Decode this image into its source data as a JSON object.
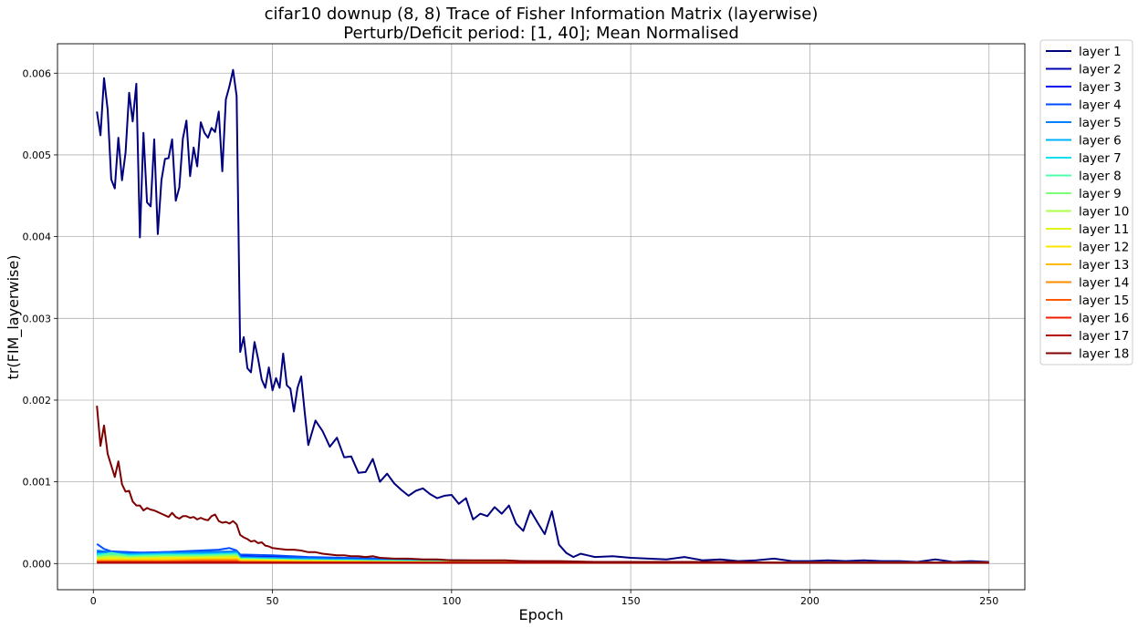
{
  "chart_data": {
    "type": "line",
    "title": [
      "cifar10 downup (8, 8) Trace of Fisher Information Matrix (layerwise)",
      "Perturb/Deficit period: [1, 40]; Mean Normalised"
    ],
    "xlabel": "Epoch",
    "ylabel": "tr(FIM_layerwise)",
    "xlim": [
      -10,
      260
    ],
    "ylim": [
      -0.00032,
      0.00636
    ],
    "xticks": [
      0,
      50,
      100,
      150,
      200,
      250
    ],
    "xtick_labels": [
      "0",
      "50",
      "100",
      "150",
      "200",
      "250"
    ],
    "yticks": [
      0.0,
      0.001,
      0.002,
      0.003,
      0.004,
      0.005,
      0.006
    ],
    "ytick_labels": [
      "0.000",
      "0.001",
      "0.002",
      "0.003",
      "0.004",
      "0.005",
      "0.006"
    ],
    "grid": true,
    "legend_position": "outside-right-top",
    "series": [
      {
        "name": "layer 1",
        "color": "#00007f",
        "x": [
          1,
          2,
          3,
          4,
          5,
          6,
          7,
          8,
          9,
          10,
          11,
          12,
          13,
          14,
          15,
          16,
          17,
          18,
          19,
          20,
          21,
          22,
          23,
          24,
          25,
          26,
          27,
          28,
          29,
          30,
          31,
          32,
          33,
          34,
          35,
          36,
          37,
          38,
          39,
          40,
          41,
          42,
          43,
          44,
          45,
          46,
          47,
          48,
          49,
          50,
          51,
          52,
          53,
          54,
          55,
          56,
          57,
          58,
          59,
          60,
          62,
          64,
          66,
          68,
          70,
          72,
          74,
          76,
          78,
          80,
          82,
          84,
          86,
          88,
          90,
          92,
          94,
          96,
          98,
          100,
          102,
          104,
          106,
          108,
          110,
          112,
          114,
          116,
          118,
          120,
          122,
          124,
          126,
          128,
          130,
          132,
          134,
          136,
          138,
          140,
          145,
          150,
          155,
          160,
          165,
          170,
          175,
          180,
          185,
          190,
          195,
          200,
          205,
          210,
          215,
          220,
          225,
          230,
          235,
          240,
          245,
          250
        ],
        "y": [
          0.00553,
          0.00524,
          0.00594,
          0.00555,
          0.0047,
          0.00459,
          0.00521,
          0.00469,
          0.00503,
          0.00576,
          0.00541,
          0.00587,
          0.00399,
          0.00527,
          0.00442,
          0.00437,
          0.00519,
          0.00403,
          0.00469,
          0.00495,
          0.00496,
          0.00519,
          0.00444,
          0.0046,
          0.0052,
          0.00542,
          0.00474,
          0.00509,
          0.00486,
          0.0054,
          0.00527,
          0.00521,
          0.00533,
          0.00528,
          0.00553,
          0.0048,
          0.00568,
          0.00584,
          0.00604,
          0.00572,
          0.00259,
          0.00277,
          0.00239,
          0.00234,
          0.00271,
          0.0025,
          0.00225,
          0.00215,
          0.0024,
          0.00212,
          0.00227,
          0.00215,
          0.00257,
          0.00218,
          0.00214,
          0.00186,
          0.00215,
          0.00229,
          0.00185,
          0.00145,
          0.00175,
          0.00162,
          0.00143,
          0.00154,
          0.0013,
          0.00131,
          0.00111,
          0.00112,
          0.00128,
          0.001,
          0.0011,
          0.00098,
          0.0009,
          0.00083,
          0.00089,
          0.00092,
          0.00085,
          0.0008,
          0.00083,
          0.00084,
          0.00073,
          0.0008,
          0.00054,
          0.00061,
          0.00058,
          0.00069,
          0.00061,
          0.00071,
          0.00049,
          0.0004,
          0.00065,
          0.0005,
          0.00036,
          0.00064,
          0.00023,
          0.00013,
          8e-05,
          0.00012,
          0.0001,
          8e-05,
          9e-05,
          7e-05,
          6e-05,
          5e-05,
          8e-05,
          4e-05,
          5e-05,
          3e-05,
          4e-05,
          6e-05,
          3e-05,
          3e-05,
          4e-05,
          3e-05,
          4e-05,
          3e-05,
          3e-05,
          2e-05,
          5e-05,
          2e-05,
          3e-05,
          2e-05
        ]
      },
      {
        "name": "layer 2",
        "color": "#0000b2",
        "x": [
          1,
          10,
          20,
          30,
          40,
          41,
          60,
          80,
          100,
          150,
          200,
          250
        ],
        "y": [
          0.00012,
          0.00012,
          0.00012,
          0.00012,
          0.00012,
          8e-05,
          6e-05,
          4e-05,
          3e-05,
          1e-05,
          1e-05,
          1e-05
        ]
      },
      {
        "name": "layer 3",
        "color": "#0000f0",
        "x": [
          1,
          10,
          20,
          30,
          40,
          41,
          60,
          80,
          100,
          150,
          200,
          250
        ],
        "y": [
          0.00014,
          0.00013,
          0.00014,
          0.00014,
          0.00014,
          9e-05,
          7e-05,
          5e-05,
          4e-05,
          1e-05,
          1e-05,
          1e-05
        ]
      },
      {
        "name": "layer 4",
        "color": "#004dff",
        "x": [
          1,
          3,
          5,
          10,
          15,
          20,
          25,
          30,
          35,
          38,
          40,
          41,
          50,
          60,
          80,
          100,
          150,
          200,
          250
        ],
        "y": [
          0.00024,
          0.00018,
          0.00015,
          0.00014,
          0.00013,
          0.00014,
          0.00015,
          0.00016,
          0.00017,
          0.00019,
          0.00016,
          0.00011,
          0.0001,
          8e-05,
          6e-05,
          4e-05,
          1e-05,
          1e-05,
          1e-05
        ]
      },
      {
        "name": "layer 5",
        "color": "#0080ff",
        "x": [
          1,
          5,
          10,
          20,
          30,
          40,
          41,
          60,
          80,
          100,
          150,
          200,
          250
        ],
        "y": [
          0.00016,
          0.00014,
          0.00012,
          0.00013,
          0.00014,
          0.00015,
          8e-05,
          6e-05,
          4e-05,
          3e-05,
          1e-05,
          1e-05,
          1e-05
        ]
      },
      {
        "name": "layer 6",
        "color": "#00b0ff",
        "x": [
          1,
          5,
          10,
          20,
          30,
          40,
          41,
          60,
          80,
          100,
          150,
          200,
          250
        ],
        "y": [
          0.00013,
          0.00012,
          0.00011,
          0.00012,
          0.00012,
          0.00013,
          7e-05,
          5e-05,
          4e-05,
          2e-05,
          1e-05,
          1e-05,
          1e-05
        ]
      },
      {
        "name": "layer 7",
        "color": "#14e0f0",
        "x": [
          1,
          5,
          10,
          20,
          30,
          40,
          41,
          60,
          80,
          100,
          150,
          200,
          250
        ],
        "y": [
          0.00011,
          0.00012,
          0.0001,
          0.00011,
          0.00011,
          0.00012,
          6e-05,
          4e-05,
          3e-05,
          2e-05,
          1e-05,
          1e-05,
          1e-05
        ]
      },
      {
        "name": "layer 8",
        "color": "#4dffad",
        "x": [
          1,
          5,
          10,
          20,
          30,
          40,
          41,
          60,
          80,
          100,
          150,
          200,
          250
        ],
        "y": [
          9e-05,
          0.00013,
          9e-05,
          0.0001,
          0.0001,
          0.00011,
          6e-05,
          4e-05,
          3e-05,
          2e-05,
          1e-05,
          1e-05,
          1e-05
        ]
      },
      {
        "name": "layer 9",
        "color": "#7dff7a",
        "x": [
          1,
          5,
          10,
          20,
          30,
          40,
          41,
          60,
          80,
          100,
          150,
          200,
          250
        ],
        "y": [
          8e-05,
          0.0001,
          8e-05,
          9e-05,
          9e-05,
          0.0001,
          5e-05,
          4e-05,
          3e-05,
          2e-05,
          1e-05,
          1e-05,
          1e-05
        ]
      },
      {
        "name": "layer 10",
        "color": "#adff4d",
        "x": [
          1,
          5,
          10,
          20,
          30,
          40,
          41,
          60,
          80,
          100,
          150,
          200,
          250
        ],
        "y": [
          7e-05,
          9e-05,
          7e-05,
          8e-05,
          8e-05,
          9e-05,
          5e-05,
          3e-05,
          2e-05,
          2e-05,
          1e-05,
          1e-05,
          1e-05
        ]
      },
      {
        "name": "layer 11",
        "color": "#e0f514",
        "x": [
          1,
          5,
          10,
          20,
          30,
          40,
          41,
          60,
          80,
          100,
          150,
          200,
          250
        ],
        "y": [
          6e-05,
          7e-05,
          6e-05,
          7e-05,
          7e-05,
          8e-05,
          4e-05,
          3e-05,
          2e-05,
          1e-05,
          1e-05,
          1e-05,
          1e-05
        ]
      },
      {
        "name": "layer 12",
        "color": "#ffe600",
        "x": [
          1,
          10,
          20,
          30,
          40,
          41,
          60,
          80,
          100,
          150,
          200,
          250
        ],
        "y": [
          5e-05,
          5e-05,
          6e-05,
          6e-05,
          6e-05,
          4e-05,
          3e-05,
          2e-05,
          1e-05,
          1e-05,
          1e-05,
          1e-05
        ]
      },
      {
        "name": "layer 13",
        "color": "#ffb900",
        "x": [
          1,
          10,
          20,
          30,
          40,
          41,
          60,
          80,
          100,
          150,
          200,
          250
        ],
        "y": [
          4e-05,
          4e-05,
          4e-05,
          5e-05,
          5e-05,
          3e-05,
          2e-05,
          2e-05,
          1e-05,
          1e-05,
          1e-05,
          1e-05
        ]
      },
      {
        "name": "layer 14",
        "color": "#ff8c00",
        "x": [
          1,
          10,
          20,
          30,
          40,
          41,
          60,
          80,
          100,
          150,
          200,
          250
        ],
        "y": [
          3e-05,
          3e-05,
          3e-05,
          4e-05,
          4e-05,
          2e-05,
          2e-05,
          1e-05,
          1e-05,
          1e-05,
          1e-05,
          1e-05
        ]
      },
      {
        "name": "layer 15",
        "color": "#ff5a00",
        "x": [
          1,
          10,
          20,
          30,
          40,
          41,
          60,
          80,
          100,
          150,
          200,
          250
        ],
        "y": [
          2e-05,
          2e-05,
          2e-05,
          3e-05,
          3e-05,
          2e-05,
          1e-05,
          1e-05,
          1e-05,
          1e-05,
          1e-05,
          1e-05
        ]
      },
      {
        "name": "layer 16",
        "color": "#f01e00",
        "x": [
          1,
          10,
          20,
          30,
          40,
          41,
          60,
          80,
          100,
          150,
          200,
          250
        ],
        "y": [
          2e-05,
          2e-05,
          2e-05,
          2e-05,
          2e-05,
          1e-05,
          1e-05,
          1e-05,
          1e-05,
          1e-05,
          1e-05,
          1e-05
        ]
      },
      {
        "name": "layer 17",
        "color": "#b20000",
        "x": [
          1,
          10,
          20,
          30,
          40,
          41,
          60,
          80,
          100,
          150,
          200,
          250
        ],
        "y": [
          1e-05,
          1e-05,
          1e-05,
          1e-05,
          1e-05,
          1e-05,
          1e-05,
          1e-05,
          1e-05,
          1e-05,
          1e-05,
          1e-05
        ]
      },
      {
        "name": "layer 18",
        "color": "#7f0000",
        "x": [
          1,
          2,
          3,
          4,
          5,
          6,
          7,
          8,
          9,
          10,
          11,
          12,
          13,
          14,
          15,
          16,
          17,
          18,
          19,
          20,
          21,
          22,
          23,
          24,
          25,
          26,
          27,
          28,
          29,
          30,
          31,
          32,
          33,
          34,
          35,
          36,
          37,
          38,
          39,
          40,
          41,
          42,
          43,
          44,
          45,
          46,
          47,
          48,
          49,
          50,
          52,
          54,
          56,
          58,
          60,
          62,
          64,
          66,
          68,
          70,
          72,
          74,
          76,
          78,
          80,
          84,
          88,
          92,
          96,
          100,
          105,
          110,
          115,
          120,
          125,
          130,
          140,
          150,
          160,
          170,
          180,
          190,
          200,
          210,
          220,
          230,
          240,
          250
        ],
        "y": [
          0.00193,
          0.00144,
          0.00169,
          0.00134,
          0.0012,
          0.00106,
          0.00125,
          0.00097,
          0.00088,
          0.00089,
          0.00076,
          0.00071,
          0.00071,
          0.00065,
          0.00068,
          0.00066,
          0.00065,
          0.00063,
          0.00061,
          0.00059,
          0.00057,
          0.00062,
          0.00057,
          0.00055,
          0.00058,
          0.00058,
          0.00056,
          0.00057,
          0.00054,
          0.00056,
          0.00054,
          0.00053,
          0.00058,
          0.0006,
          0.00052,
          0.0005,
          0.00051,
          0.00049,
          0.00052,
          0.00048,
          0.00035,
          0.00032,
          0.0003,
          0.00027,
          0.00028,
          0.00025,
          0.00026,
          0.00022,
          0.00021,
          0.00019,
          0.00018,
          0.00017,
          0.00017,
          0.00016,
          0.00014,
          0.00014,
          0.00012,
          0.00011,
          0.0001,
          0.0001,
          9e-05,
          9e-05,
          8e-05,
          9e-05,
          7e-05,
          6e-05,
          6e-05,
          5e-05,
          5e-05,
          4e-05,
          4e-05,
          4e-05,
          4e-05,
          3e-05,
          3e-05,
          3e-05,
          2e-05,
          2e-05,
          2e-05,
          2e-05,
          2e-05,
          1e-05,
          1e-05,
          1e-05,
          1e-05,
          1e-05,
          1e-05,
          1e-05
        ]
      }
    ]
  }
}
